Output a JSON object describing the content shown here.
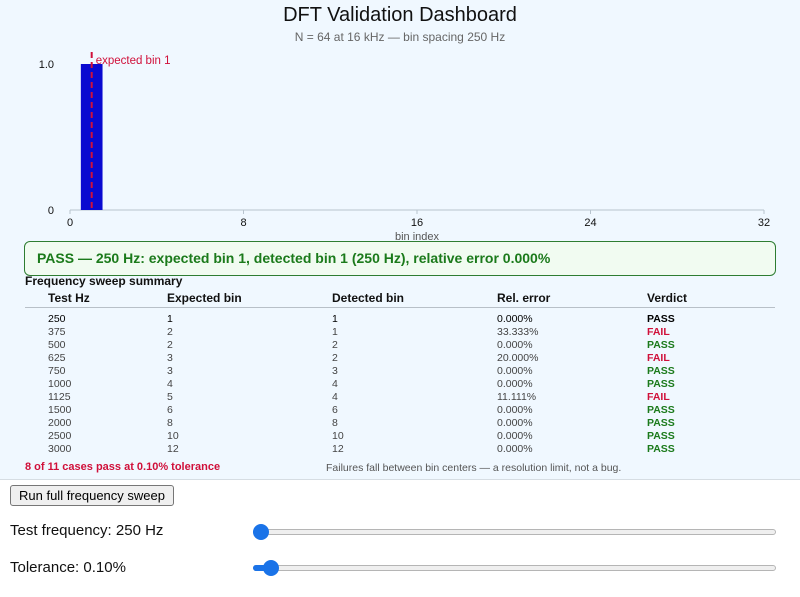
{
  "header": {
    "title": "DFT Validation Dashboard",
    "subtitle": "N = 64 at 16 kHz — bin spacing 250 Hz"
  },
  "chart_data": {
    "type": "bar",
    "title": "",
    "xlabel": "bin index",
    "ylabel": "",
    "xlim": [
      0,
      32
    ],
    "ylim": [
      0,
      1.0
    ],
    "x_ticks": [
      "0",
      "8",
      "16",
      "24",
      "32"
    ],
    "y_ticks": [
      "0",
      "1.0"
    ],
    "bars": [
      {
        "bin": 1,
        "value": 1.0
      }
    ],
    "marker": {
      "bin": 1,
      "label": "expected bin 1"
    },
    "colors": {
      "bar": "#0a0ad0",
      "marker": "#d0103a"
    }
  },
  "status": {
    "text": "PASS — 250 Hz: expected bin 1, detected bin 1 (250 Hz), relative error 0.000%",
    "state": "pass"
  },
  "summary": {
    "title": "Frequency sweep summary",
    "columns": [
      "Test Hz",
      "Expected bin",
      "Detected bin",
      "Rel. error",
      "Verdict"
    ],
    "rows": [
      {
        "hz": "250",
        "expected": "1",
        "detected": "1",
        "error": "0.000%",
        "verdict": "PASS"
      },
      {
        "hz": "375",
        "expected": "2",
        "detected": "1",
        "error": "33.333%",
        "verdict": "FAIL"
      },
      {
        "hz": "500",
        "expected": "2",
        "detected": "2",
        "error": "0.000%",
        "verdict": "PASS"
      },
      {
        "hz": "625",
        "expected": "3",
        "detected": "2",
        "error": "20.000%",
        "verdict": "FAIL"
      },
      {
        "hz": "750",
        "expected": "3",
        "detected": "3",
        "error": "0.000%",
        "verdict": "PASS"
      },
      {
        "hz": "1000",
        "expected": "4",
        "detected": "4",
        "error": "0.000%",
        "verdict": "PASS"
      },
      {
        "hz": "1125",
        "expected": "5",
        "detected": "4",
        "error": "11.111%",
        "verdict": "FAIL"
      },
      {
        "hz": "1500",
        "expected": "6",
        "detected": "6",
        "error": "0.000%",
        "verdict": "PASS"
      },
      {
        "hz": "2000",
        "expected": "8",
        "detected": "8",
        "error": "0.000%",
        "verdict": "PASS"
      },
      {
        "hz": "2500",
        "expected": "10",
        "detected": "10",
        "error": "0.000%",
        "verdict": "PASS"
      },
      {
        "hz": "3000",
        "expected": "12",
        "detected": "12",
        "error": "0.000%",
        "verdict": "PASS"
      }
    ],
    "pass_count": "8 of 11 cases pass at 0.10% tolerance",
    "note": "Failures fall between bin centers — a resolution limit, not a bug."
  },
  "controls": {
    "run_button": "Run full frequency sweep",
    "frequency_label": "Test frequency: 250 Hz",
    "frequency_level": 0.0,
    "tolerance_label": "Tolerance: 0.10%",
    "tolerance_level": 0.02,
    "accent": "#1a73e8"
  }
}
